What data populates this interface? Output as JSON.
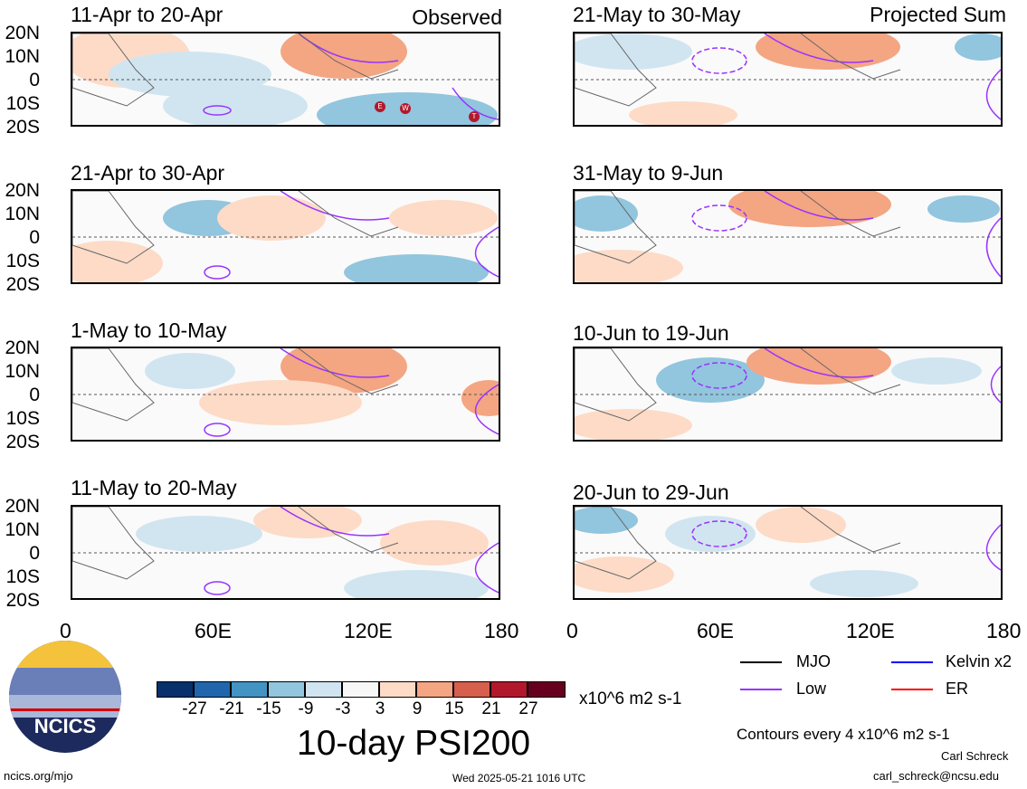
{
  "header": {
    "left_tag": "Observed",
    "right_tag": "Projected Sum"
  },
  "lat_labels": [
    "20N",
    "10N",
    "0",
    "10S",
    "20S"
  ],
  "lon_labels": [
    "0",
    "60E",
    "120E",
    "180"
  ],
  "panels_left": [
    {
      "title": "11-Apr to 20-Apr"
    },
    {
      "title": "21-Apr to 30-Apr"
    },
    {
      "title": "1-May to 10-May"
    },
    {
      "title": "11-May to 20-May"
    }
  ],
  "panels_right": [
    {
      "title": "21-May to 30-May"
    },
    {
      "title": "31-May to 9-Jun"
    },
    {
      "title": "10-Jun to 19-Jun"
    },
    {
      "title": "20-Jun to 29-Jun"
    }
  ],
  "storm_markers": [
    "E",
    "W",
    "T"
  ],
  "colorbar": {
    "colors": [
      "#08306b",
      "#2166ac",
      "#4393c3",
      "#92c5de",
      "#d1e5f0",
      "#f7f7f7",
      "#fddbc7",
      "#f4a582",
      "#d6604d",
      "#b2182b",
      "#67001f"
    ],
    "labels": [
      "-27",
      "-21",
      "-15",
      "-9",
      "-3",
      "3",
      "9",
      "15",
      "21",
      "27"
    ],
    "units": "x10^6 m2 s-1"
  },
  "title": "10-day PSI200",
  "legend": [
    {
      "label": "MJO",
      "color": "#000000"
    },
    {
      "label": "Kelvin x2",
      "color": "#0000ff"
    },
    {
      "label": "Low",
      "color": "#9933ff"
    },
    {
      "label": "ER",
      "color": "#ff0000"
    }
  ],
  "contour_note": "Contours every 4 x10^6 m2 s-1",
  "logo_text": "NCICS",
  "footer": {
    "url": "ncics.org/mjo",
    "timestamp": "Wed 2025-05-21 1016 UTC",
    "author": "Carl Schreck",
    "email": "carl_schreck@ncsu.edu"
  }
}
